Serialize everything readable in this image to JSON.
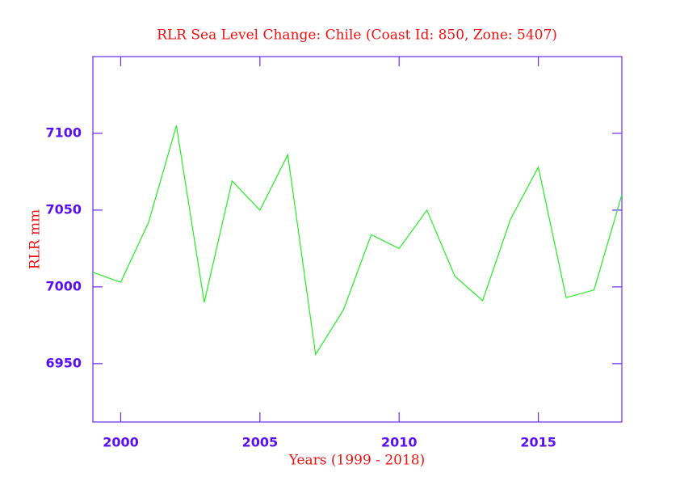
{
  "chart_data": {
    "type": "line",
    "title": "RLR Sea Level Change: Chile (Coast Id: 850, Zone: 5407)",
    "xlabel": "Years (1999 - 2018)",
    "ylabel": "RLR mm",
    "x": [
      1999,
      2000,
      2001,
      2002,
      2003,
      2004,
      2005,
      2006,
      2007,
      2008,
      2009,
      2010,
      2011,
      2012,
      2013,
      2014,
      2015,
      2016,
      2017,
      2018
    ],
    "series": [
      {
        "color": "#22ee22",
        "values": [
          7009.5,
          7003,
          7042,
          7105,
          6990,
          7069,
          7050,
          7086,
          6956,
          6985,
          7034,
          7025,
          7050,
          7007,
          6991,
          7044,
          7078,
          6993,
          6998,
          7060
        ]
      }
    ],
    "xlim": [
      1999,
      2018
    ],
    "xticks": [
      2000,
      2005,
      2010,
      2015
    ],
    "ylim": [
      6912,
      7150
    ],
    "yticks": [
      6950,
      7000,
      7050,
      7100
    ],
    "grid": false
  }
}
